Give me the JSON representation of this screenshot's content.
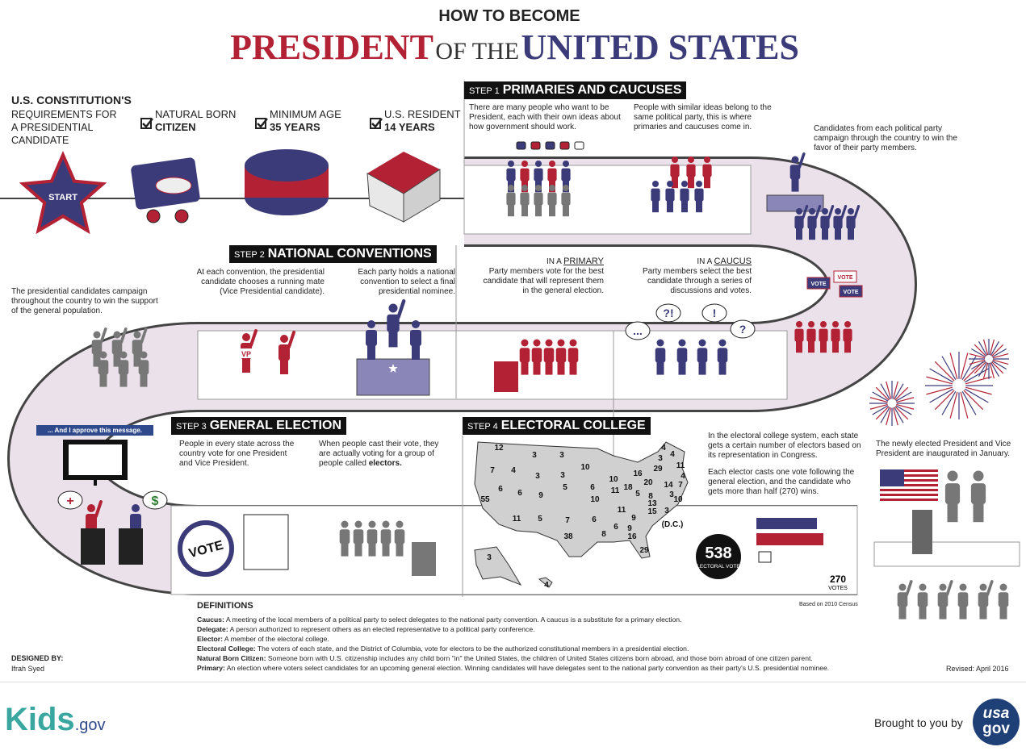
{
  "header": {
    "kicker": "HOW TO BECOME",
    "title_a": "PRESIDENT",
    "title_b": "OF THE",
    "title_c": "UNITED STATES"
  },
  "requirements": {
    "heading": "U.S. CONSTITUTION'S",
    "subheading": "REQUIREMENTS FOR A PRESIDENTIAL CANDIDATE",
    "items": [
      {
        "label": "NATURAL BORN",
        "value": "CITIZEN"
      },
      {
        "label": "MINIMUM AGE",
        "value": "35 YEARS"
      },
      {
        "label": "U.S. RESIDENT",
        "value": "14 YEARS"
      }
    ]
  },
  "start": "START",
  "steps": [
    {
      "number": "STEP 1",
      "title": "PRIMARIES AND CAUCUSES",
      "paragraphs": [
        "There are many people who want to be President, each with their own ideas about how government should work.",
        "People with similar ideas belong to the same political party, this is where primaries and caucuses come in."
      ]
    },
    {
      "number": "STEP 2",
      "title": "NATIONAL CONVENTIONS",
      "paragraphs": [
        "At each convention, the presidential candidate chooses a running mate (Vice Presidential candidate).",
        "Each party holds a national convention to select a final presidential nominee."
      ]
    },
    {
      "number": "STEP 3",
      "title": "GENERAL ELECTION",
      "paragraphs": [
        "People in every state across the country vote for one President and Vice President.",
        "When people cast their vote, they are actually voting for a group of people called"
      ],
      "bold": "electors."
    },
    {
      "number": "STEP 4",
      "title": "ELECTORAL COLLEGE",
      "paragraphs": [
        "In the electoral college system, each state gets a certain number of electors based on its representation in Congress.",
        "Each elector casts one vote following the general election, and the candidate who gets more than half (270) wins."
      ]
    }
  ],
  "party_campaign": "Candidates from each political party campaign through the country to win the favor of their party members.",
  "primary": {
    "prefix": "IN A",
    "term": "PRIMARY",
    "text": "Party members vote for the best candidate that will represent them in the general election."
  },
  "caucus": {
    "prefix": "IN A",
    "term": "CAUCUS",
    "text": "Party members select the best candidate through a series of discussions and votes."
  },
  "general_campaign": "The presidential candidates campaign throughout the country to win the support of the general population.",
  "approve": "... And I approve this message.",
  "inauguration": "The newly elected President and Vice President are inaugurated in January.",
  "icons": {
    "vp": "VP",
    "vote_badge": "VOTE",
    "signs": [
      "VOTE",
      "VOTE",
      "VOTE"
    ],
    "bubbles": [
      "...",
      "?!",
      "!",
      "?"
    ],
    "health": "+",
    "money": "$"
  },
  "map": {
    "electors": [
      12,
      3,
      3,
      4,
      4,
      3,
      10,
      11,
      29,
      7,
      4,
      3,
      3,
      16,
      4,
      10,
      20,
      5,
      6,
      6,
      6,
      9,
      18,
      14,
      7,
      11,
      5,
      3,
      10,
      8,
      13,
      10,
      55,
      11,
      15,
      6,
      11,
      5,
      7,
      9,
      6,
      8,
      9,
      16,
      38,
      29,
      3,
      4,
      3
    ],
    "dc_label": "(D.C.)",
    "total": "538",
    "total_label": "ELECTORAL VOTES",
    "win": "270",
    "win_label": "VOTES",
    "census": "Based on 2010 Census"
  },
  "definitions": {
    "heading": "DEFINITIONS",
    "items": [
      {
        "term": "Caucus:",
        "text": "A meeting of the local members of a political party to select delegates to the national party convention. A caucus is a substitute for a primary election."
      },
      {
        "term": "Delegate:",
        "text": "A person authorized to represent others as an elected representative to a political party conference."
      },
      {
        "term": "Elector:",
        "text": "A member of the electoral college."
      },
      {
        "term": "Electoral College:",
        "text": "The voters of each state, and the District of Columbia, vote for electors to be the authorized constitutional members in a presidential election."
      },
      {
        "term": "Natural Born Citizen:",
        "text": "Someone born with U.S. citizenship includes any child born \"in\" the United States, the children of United States citizens born abroad, and those born abroad of one citizen parent."
      },
      {
        "term": "Primary:",
        "text": "An election where voters select candidates for an upcoming general election. Winning candidates will have delegates sent to the national party convention as their party's U.S. presidential nominee."
      }
    ]
  },
  "credits": {
    "designed_by": "DESIGNED BY:",
    "designer": "Ifrah Syed",
    "revised": "Revised: April 2016"
  },
  "footer": {
    "kids": "Kids",
    ".gov": ".gov",
    "brought": "Brought to you by",
    "usa": "usa",
    "gov": "gov"
  }
}
